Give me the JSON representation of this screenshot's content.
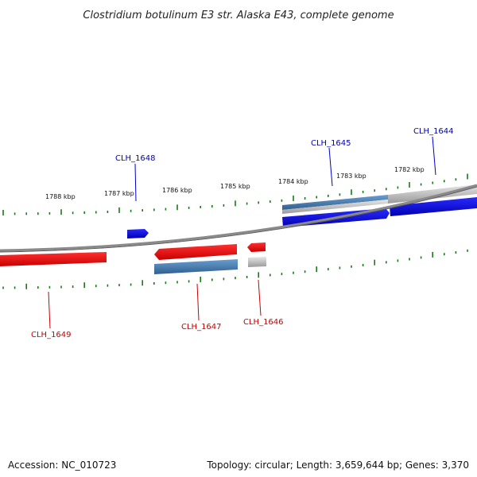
{
  "title": "Clostridium botulinum E3 str. Alaska E43, complete genome",
  "footer": {
    "accession": "Accession: NC_010723",
    "summary": "Topology: circular; Length: 3,659,644 bp; Genes: 3,370"
  },
  "colors": {
    "forward_gene": "#0000ee",
    "reverse_gene": "#ee0000",
    "forward_label": "#0000bb",
    "reverse_label": "#cc0000",
    "cds_steelblue": "#4a7fb0",
    "pseudo_gray": "#aaaaaa",
    "backbone": "#808080",
    "ticks": "#1a7a1a"
  },
  "ticks": [
    {
      "label": "1788 kbp"
    },
    {
      "label": "1787 kbp"
    },
    {
      "label": "1786 kbp"
    },
    {
      "label": "1785 kbp"
    },
    {
      "label": "1784 kbp"
    },
    {
      "label": "1783 kbp"
    },
    {
      "label": "1782 kbp"
    }
  ],
  "genes": [
    {
      "label": "CLH_1648",
      "strand": "forward"
    },
    {
      "label": "CLH_1645",
      "strand": "forward"
    },
    {
      "label": "CLH_1644",
      "strand": "forward"
    },
    {
      "label": "CLH_1649",
      "strand": "reverse"
    },
    {
      "label": "CLH_1647",
      "strand": "reverse"
    },
    {
      "label": "CLH_1646",
      "strand": "reverse"
    }
  ]
}
